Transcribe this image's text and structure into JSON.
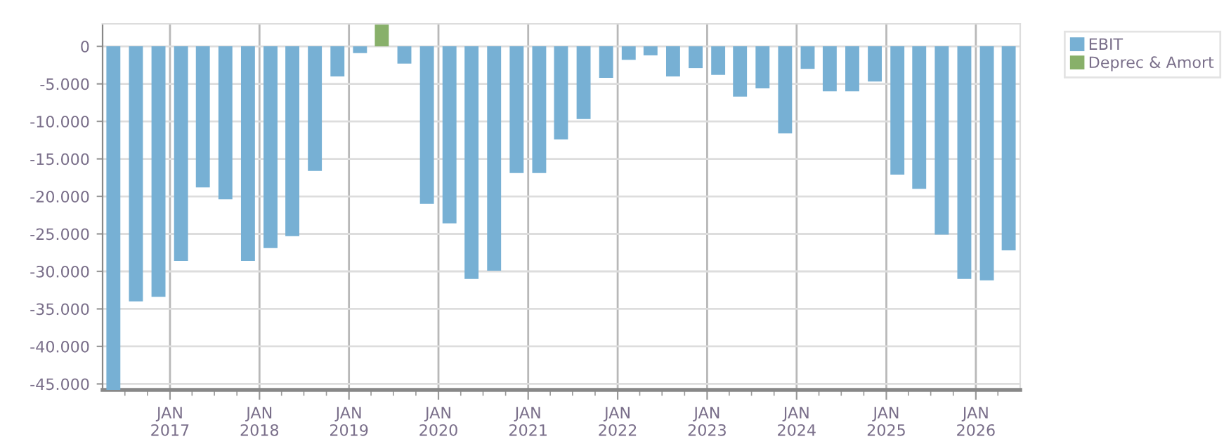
{
  "chart_data": {
    "type": "bar",
    "x": [
      "2016-05-15",
      "2016-08-15",
      "2016-11-15",
      "2017-02-15",
      "2017-05-15",
      "2017-08-15",
      "2017-11-15",
      "2018-02-15",
      "2018-05-15",
      "2018-08-15",
      "2018-11-15",
      "2019-02-15",
      "2019-05-15",
      "2019-08-15",
      "2019-11-15",
      "2020-02-15",
      "2020-05-15",
      "2020-08-15",
      "2020-11-15",
      "2021-02-15",
      "2021-05-15",
      "2021-08-15",
      "2021-11-15",
      "2022-02-15",
      "2022-05-15",
      "2022-08-15",
      "2022-11-15",
      "2023-02-15",
      "2023-05-15",
      "2023-08-15",
      "2023-11-15",
      "2024-02-15",
      "2024-05-15",
      "2024-08-15",
      "2024-11-15",
      "2025-02-15",
      "2025-05-15",
      "2025-08-15",
      "2025-11-15",
      "2026-02-15",
      "2026-05-15"
    ],
    "series": [
      {
        "name": "EBIT",
        "color": "#77b0d4",
        "values": [
          -45800,
          -34000,
          -33400,
          -28600,
          -18800,
          -20400,
          -28600,
          -26900,
          -25300,
          -16600,
          -4000,
          -900,
          null,
          -2300,
          -21000,
          -23600,
          -31000,
          -29900,
          -16900,
          -16900,
          -12400,
          -9700,
          -4200,
          -1800,
          -1200,
          -4000,
          -2900,
          -3800,
          -6700,
          -5600,
          -11600,
          -3000,
          -6000,
          -6000,
          -4700,
          -17100,
          -19000,
          -25100,
          -31000,
          -31200,
          -27200
        ]
      },
      {
        "name": "Deprec & Amort",
        "color": "#88b06a",
        "values": [
          0,
          0,
          0,
          0,
          0,
          0,
          0,
          0,
          0,
          0,
          0,
          0,
          2900,
          0,
          0,
          0,
          0,
          0,
          0,
          0,
          0,
          0,
          0,
          0,
          0,
          0,
          0,
          0,
          0,
          0,
          0,
          0,
          0,
          0,
          0,
          0,
          0,
          0,
          0,
          0,
          0
        ]
      }
    ],
    "xlim": [
      "2016-04-01",
      "2026-07-01"
    ],
    "xticks": [
      {
        "value": "2017-01-01",
        "label": "JAN\n2017"
      },
      {
        "value": "2018-01-01",
        "label": "JAN\n2018"
      },
      {
        "value": "2019-01-01",
        "label": "JAN\n2019"
      },
      {
        "value": "2020-01-01",
        "label": "JAN\n2020"
      },
      {
        "value": "2021-01-01",
        "label": "JAN\n2021"
      },
      {
        "value": "2022-01-01",
        "label": "JAN\n2022"
      },
      {
        "value": "2023-01-01",
        "label": "JAN\n2023"
      },
      {
        "value": "2024-01-01",
        "label": "JAN\n2024"
      },
      {
        "value": "2025-01-01",
        "label": "JAN\n2025"
      },
      {
        "value": "2026-01-01",
        "label": "JAN\n2026"
      },
      {
        "value": "2016-07-01",
        "label": null
      },
      {
        "value": "2016-10-01",
        "label": null
      },
      {
        "value": "2017-04-01",
        "label": null
      },
      {
        "value": "2017-07-01",
        "label": null
      },
      {
        "value": "2017-10-01",
        "label": null
      },
      {
        "value": "2018-04-01",
        "label": null
      },
      {
        "value": "2018-07-01",
        "label": null
      },
      {
        "value": "2018-10-01",
        "label": null
      },
      {
        "value": "2019-04-01",
        "label": null
      },
      {
        "value": "2019-07-01",
        "label": null
      },
      {
        "value": "2019-10-01",
        "label": null
      },
      {
        "value": "2020-04-01",
        "label": null
      },
      {
        "value": "2020-07-01",
        "label": null
      },
      {
        "value": "2020-10-01",
        "label": null
      },
      {
        "value": "2021-04-01",
        "label": null
      },
      {
        "value": "2021-07-01",
        "label": null
      },
      {
        "value": "2021-10-01",
        "label": null
      },
      {
        "value": "2022-04-01",
        "label": null
      },
      {
        "value": "2022-07-01",
        "label": null
      },
      {
        "value": "2022-10-01",
        "label": null
      },
      {
        "value": "2023-04-01",
        "label": null
      },
      {
        "value": "2023-07-01",
        "label": null
      },
      {
        "value": "2023-10-01",
        "label": null
      },
      {
        "value": "2024-04-01",
        "label": null
      },
      {
        "value": "2024-07-01",
        "label": null
      },
      {
        "value": "2024-10-01",
        "label": null
      },
      {
        "value": "2025-04-01",
        "label": null
      },
      {
        "value": "2025-07-01",
        "label": null
      },
      {
        "value": "2025-10-01",
        "label": null
      },
      {
        "value": "2026-04-01",
        "label": null
      }
    ],
    "ylim": [
      -45800,
      3000
    ],
    "yticks": [
      {
        "value": 0,
        "label": "0"
      },
      {
        "value": -5000,
        "label": "-5.000"
      },
      {
        "value": -10000,
        "label": "-10.000"
      },
      {
        "value": -15000,
        "label": "-15.000"
      },
      {
        "value": -20000,
        "label": "-20.000"
      },
      {
        "value": -25000,
        "label": "-25.000"
      },
      {
        "value": -30000,
        "label": "-30.000"
      },
      {
        "value": -35000,
        "label": "-35.000"
      },
      {
        "value": -40000,
        "label": "-40.000"
      },
      {
        "value": -45000,
        "label": "-45.000"
      }
    ],
    "grid": true,
    "legend": "top right"
  }
}
